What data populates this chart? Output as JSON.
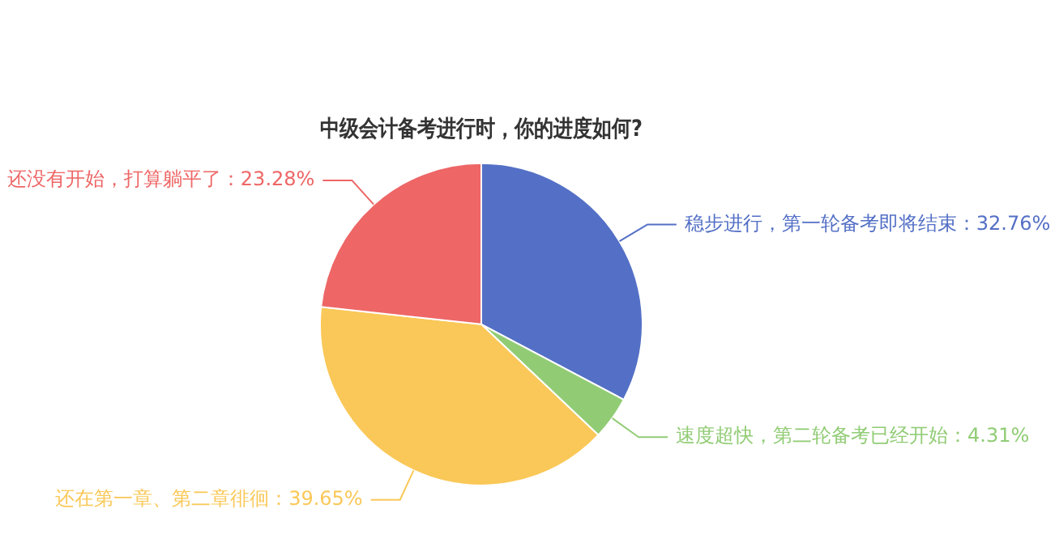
{
  "chart_data": {
    "type": "pie",
    "title": "中级会计备考进行时，你的进度如何?",
    "categories": [
      "稳步进行，第一轮备考即将结束",
      "速度超快，第二轮备考已经开始",
      "还在第一章、第二章徘徊",
      "还没有开始，打算躺平了"
    ],
    "values": [
      32.76,
      4.31,
      39.65,
      23.28
    ],
    "value_labels": [
      "32.76%",
      "4.31%",
      "39.65%",
      "23.28%"
    ],
    "colors": [
      "#5470c6",
      "#91cc75",
      "#fac858",
      "#ee6666"
    ],
    "legend": false
  }
}
